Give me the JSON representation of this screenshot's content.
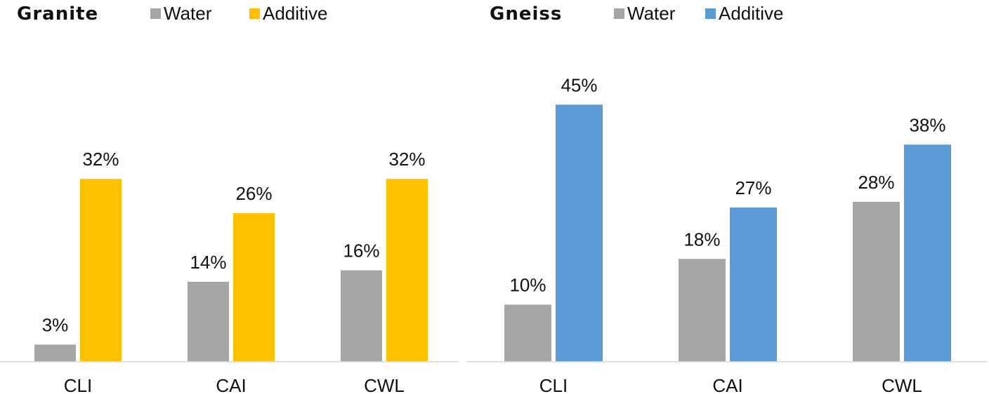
{
  "chart_data": [
    {
      "type": "bar",
      "title": "Granite",
      "categories": [
        "CLI",
        "CAI",
        "CWL"
      ],
      "series": [
        {
          "name": "Water",
          "values": [
            3,
            14,
            16
          ],
          "color": "#A6A6A6"
        },
        {
          "name": "Additive",
          "values": [
            32,
            26,
            32
          ],
          "color": "#FFC000"
        }
      ],
      "value_suffix": "%",
      "ylim": [
        0,
        45
      ],
      "legend": "top",
      "grid": false
    },
    {
      "type": "bar",
      "title": "Gneiss",
      "categories": [
        "CLI",
        "CAI",
        "CWL"
      ],
      "series": [
        {
          "name": "Water",
          "values": [
            10,
            18,
            28
          ],
          "color": "#A6A6A6"
        },
        {
          "name": "Additive",
          "values": [
            45,
            27,
            38
          ],
          "color": "#5B9BD5"
        }
      ],
      "value_suffix": "%",
      "ylim": [
        0,
        45
      ],
      "legend": "top",
      "grid": false
    }
  ]
}
